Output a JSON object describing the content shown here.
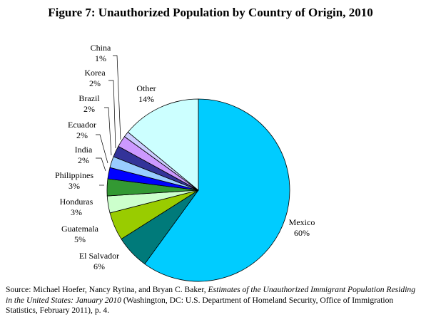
{
  "figure": {
    "title": "Figure 7: Unauthorized Population by Country of Origin, 2010"
  },
  "chart_data": {
    "type": "pie",
    "title": "Figure 7: Unauthorized Population by Country of Origin, 2010",
    "unit": "%",
    "slices": [
      {
        "label": "Mexico",
        "value": 60,
        "value_label": "60%",
        "color": "#00ccff"
      },
      {
        "label": "El Salvador",
        "value": 6,
        "value_label": "6%",
        "color": "#007a7a"
      },
      {
        "label": "Guatemala",
        "value": 5,
        "value_label": "5%",
        "color": "#99cc00"
      },
      {
        "label": "Honduras",
        "value": 3,
        "value_label": "3%",
        "color": "#ccffcc"
      },
      {
        "label": "Philippines",
        "value": 3,
        "value_label": "3%",
        "color": "#339933"
      },
      {
        "label": "India",
        "value": 2,
        "value_label": "2%",
        "color": "#0000ff"
      },
      {
        "label": "Ecuador",
        "value": 2,
        "value_label": "2%",
        "color": "#99ccff"
      },
      {
        "label": "Brazil",
        "value": 2,
        "value_label": "2%",
        "color": "#333399"
      },
      {
        "label": "Korea",
        "value": 2,
        "value_label": "2%",
        "color": "#cc99ff"
      },
      {
        "label": "China",
        "value": 1,
        "value_label": "1%",
        "color": "#ccccff"
      },
      {
        "label": "Other",
        "value": 14,
        "value_label": "14%",
        "color": "#ccffff"
      }
    ]
  },
  "source": {
    "prefix": "Source: Michael Hoefer, Nancy Rytina, and Bryan C. Baker, ",
    "title_italic": "Estimates of the Unauthorized Immigrant Population Residing in the United States: January 2010",
    "suffix": " (Washington, DC: U.S. Department of Homeland Security, Office of Immigration Statistics, February 2011), p. 4."
  }
}
